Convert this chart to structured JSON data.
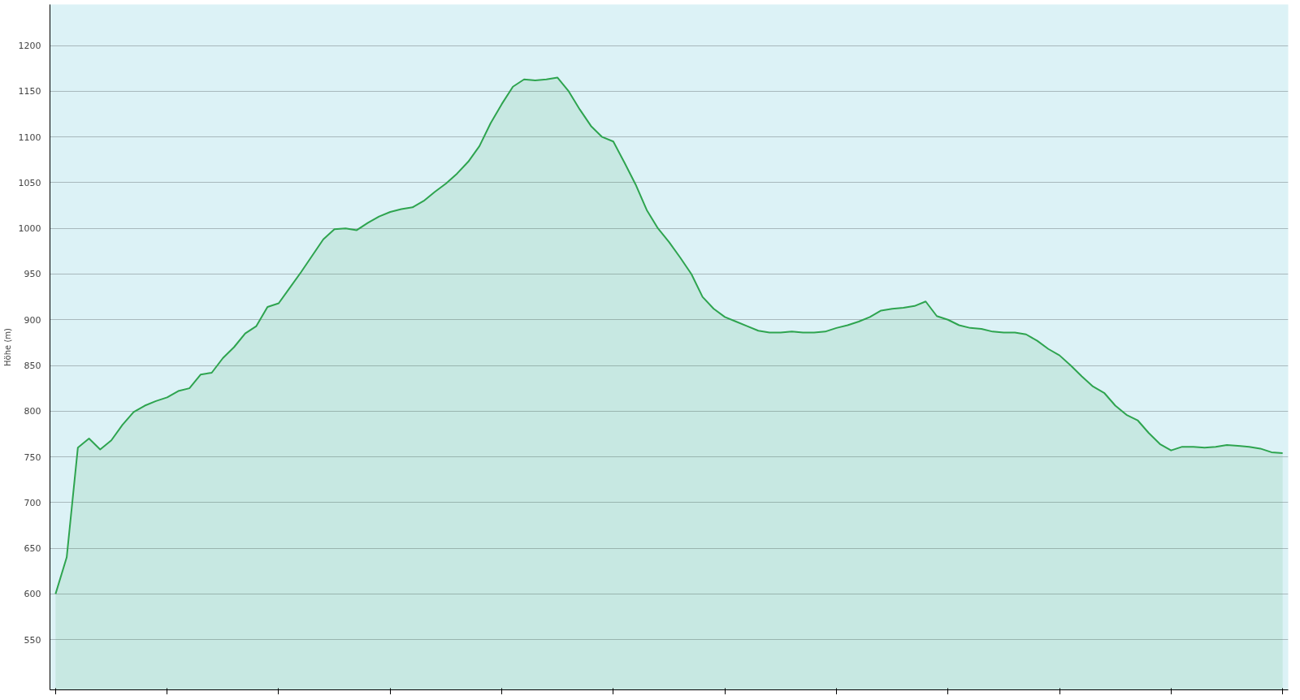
{
  "chart_data": {
    "type": "area",
    "ylabel": "Höhe (m)",
    "categories": [
      null,
      null,
      null,
      null,
      null,
      null,
      null,
      null,
      null,
      null,
      null,
      null,
      null,
      null,
      null,
      null,
      null,
      null,
      null,
      null,
      null,
      null,
      null,
      null,
      null,
      null,
      null,
      null,
      null,
      null,
      null,
      null,
      null,
      null,
      null,
      null,
      null,
      null,
      null,
      null,
      null,
      null,
      null,
      null,
      null,
      null,
      null,
      null,
      null,
      null,
      null,
      null,
      null,
      null,
      null,
      null,
      null,
      null,
      null,
      null,
      null,
      null,
      null,
      null,
      null,
      null,
      null,
      null,
      null,
      null,
      null,
      null,
      null,
      null,
      null,
      null,
      null,
      null,
      null,
      null,
      null,
      null,
      null,
      null,
      null,
      null,
      null,
      null,
      null,
      null,
      null,
      null,
      null,
      null,
      null,
      null,
      null,
      null,
      null,
      null,
      null,
      null,
      null,
      null,
      null,
      null,
      null,
      null,
      null,
      null,
      null
    ],
    "series": [
      {
        "color": "#2ea44f",
        "values": [
          600,
          640,
          760,
          770,
          758,
          768,
          785,
          799,
          806,
          811,
          815,
          822,
          825,
          840,
          842,
          858,
          870,
          885,
          893,
          914,
          918,
          935,
          952,
          970,
          988,
          999,
          1000,
          998,
          1006,
          1013,
          1018,
          1021,
          1023,
          1030,
          1040,
          1049,
          1060,
          1073,
          1090,
          1115,
          1136,
          1155,
          1163,
          1162,
          1163,
          1165,
          1150,
          1130,
          1112,
          1100,
          1095,
          1072,
          1048,
          1020,
          1000,
          985,
          968,
          950,
          925,
          912,
          903,
          898,
          893,
          888,
          886,
          886,
          887,
          886,
          886,
          887,
          891,
          894,
          898,
          903,
          910,
          912,
          913,
          915,
          920,
          904,
          900,
          894,
          891,
          890,
          887,
          886,
          886,
          884,
          877,
          868,
          861,
          850,
          838,
          827,
          820,
          806,
          796,
          790,
          776,
          764,
          757,
          761,
          761,
          760,
          761,
          763,
          762,
          761,
          759,
          755,
          754
        ]
      }
    ],
    "ylim": [
      495,
      1245
    ],
    "yticks": [
      550,
      600,
      650,
      700,
      750,
      800,
      850,
      900,
      950,
      1000,
      1050,
      1100,
      1150,
      1200
    ],
    "grid": "y",
    "tick_labels": "y"
  }
}
